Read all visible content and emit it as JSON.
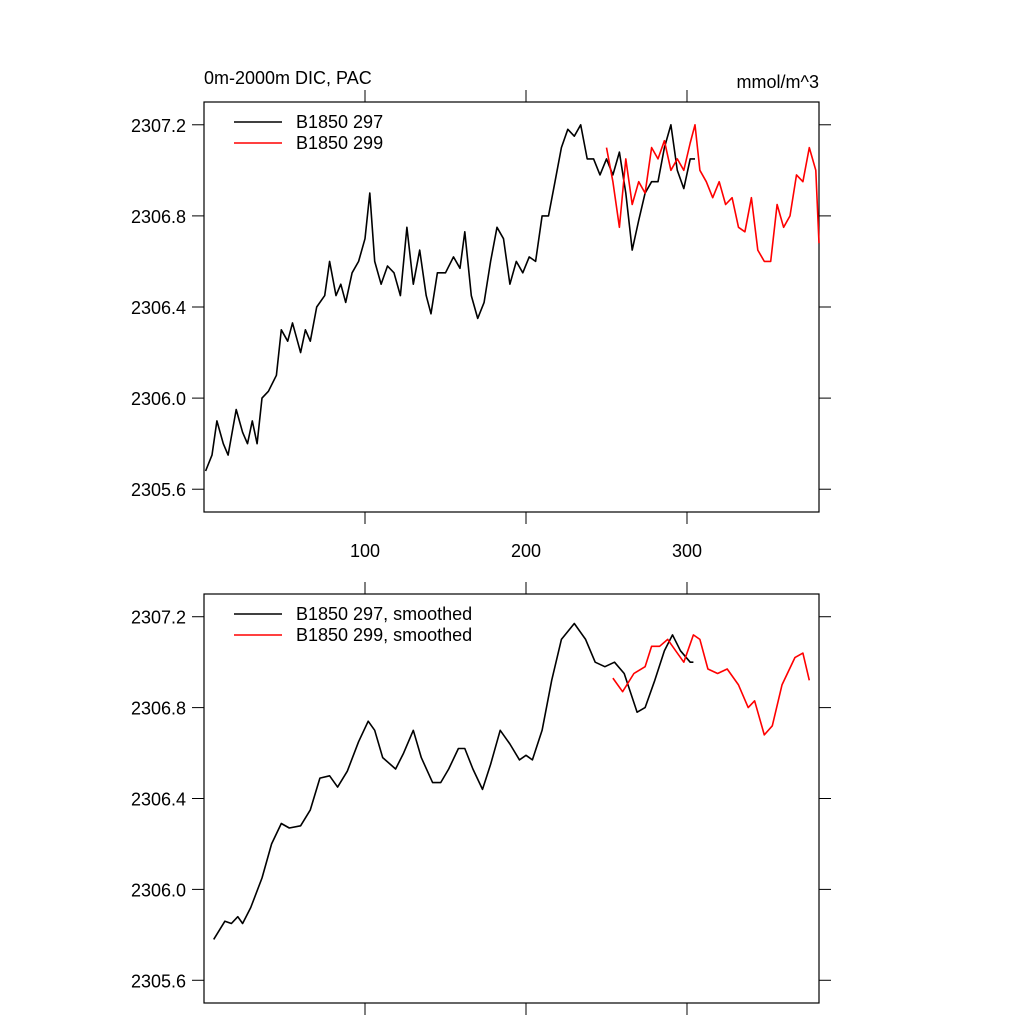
{
  "chart_data": [
    {
      "type": "line",
      "title": "0m-2000m DIC, PAC",
      "units": "mmol/m^3",
      "xlim": [
        0,
        382
      ],
      "ylim": [
        2305.5,
        2307.3
      ],
      "xticks": [
        100,
        200,
        300
      ],
      "show_xtick_labels": true,
      "yticks": [
        2305.6,
        {
          "value": 2306.0,
          "label": "2306.0"
        },
        2306.4,
        2306.8,
        2307.2
      ],
      "legend": "top-left",
      "series": [
        {
          "name": "B1850 297",
          "color": "#000000",
          "x": [
            1,
            5,
            8,
            12,
            15,
            20,
            24,
            27,
            30,
            33,
            36,
            40,
            45,
            48,
            52,
            55,
            60,
            63,
            66,
            70,
            75,
            78,
            82,
            85,
            88,
            92,
            96,
            100,
            103,
            106,
            110,
            114,
            118,
            122,
            126,
            130,
            134,
            138,
            141,
            145,
            150,
            155,
            159,
            162,
            166,
            170,
            174,
            178,
            182,
            186,
            190,
            194,
            198,
            202,
            206,
            210,
            214,
            218,
            222,
            226,
            230,
            234,
            238,
            242,
            246,
            250,
            254,
            258,
            262,
            266,
            270,
            274,
            278,
            282,
            286,
            290,
            294,
            298,
            302,
            305
          ],
          "values": [
            2305.68,
            2305.75,
            2305.9,
            2305.8,
            2305.75,
            2305.95,
            2305.85,
            2305.8,
            2305.9,
            2305.8,
            2306.0,
            2306.03,
            2306.1,
            2306.3,
            2306.25,
            2306.33,
            2306.2,
            2306.3,
            2306.25,
            2306.4,
            2306.45,
            2306.6,
            2306.45,
            2306.5,
            2306.42,
            2306.55,
            2306.6,
            2306.7,
            2306.9,
            2306.6,
            2306.5,
            2306.58,
            2306.55,
            2306.45,
            2306.75,
            2306.5,
            2306.65,
            2306.45,
            2306.37,
            2306.55,
            2306.55,
            2306.62,
            2306.57,
            2306.73,
            2306.45,
            2306.35,
            2306.42,
            2306.6,
            2306.75,
            2306.7,
            2306.5,
            2306.6,
            2306.55,
            2306.62,
            2306.6,
            2306.8,
            2306.8,
            2306.95,
            2307.1,
            2307.18,
            2307.15,
            2307.2,
            2307.05,
            2307.05,
            2306.98,
            2307.05,
            2306.98,
            2307.08,
            2306.9,
            2306.65,
            2306.78,
            2306.9,
            2306.95,
            2306.95,
            2307.1,
            2307.2,
            2307.0,
            2306.92,
            2307.05,
            2307.05
          ]
        },
        {
          "name": "B1850 299",
          "color": "#ff0000",
          "x": [
            250,
            254,
            258,
            262,
            266,
            270,
            274,
            278,
            282,
            286,
            290,
            294,
            298,
            302,
            305,
            308,
            312,
            316,
            320,
            324,
            328,
            332,
            336,
            340,
            344,
            348,
            352,
            356,
            360,
            364,
            368,
            372,
            376,
            380,
            382
          ],
          "values": [
            2307.1,
            2306.95,
            2306.75,
            2307.05,
            2306.85,
            2306.95,
            2306.9,
            2307.1,
            2307.05,
            2307.13,
            2307.0,
            2307.05,
            2307.0,
            2307.12,
            2307.2,
            2307.0,
            2306.95,
            2306.88,
            2306.95,
            2306.85,
            2306.88,
            2306.75,
            2306.73,
            2306.88,
            2306.65,
            2306.6,
            2306.6,
            2306.85,
            2306.75,
            2306.8,
            2306.98,
            2306.95,
            2307.1,
            2307.0,
            2306.68
          ]
        }
      ]
    },
    {
      "type": "line",
      "xlim": [
        0,
        382
      ],
      "ylim": [
        2305.5,
        2307.3
      ],
      "xticks": [
        100,
        200,
        300
      ],
      "show_xtick_labels": false,
      "yticks": [
        2305.6,
        {
          "value": 2306.0,
          "label": "2306.0"
        },
        2306.4,
        2306.8,
        2307.2
      ],
      "legend": "top-left",
      "series": [
        {
          "name": "B1850 297, smoothed",
          "color": "#000000",
          "x": [
            6,
            13,
            17,
            21,
            24,
            29,
            36,
            42,
            48,
            53,
            60,
            66,
            72,
            78,
            83,
            89,
            96,
            102,
            106,
            111,
            119,
            124,
            130,
            135,
            142,
            147,
            152,
            158,
            162,
            167,
            173,
            178,
            184,
            190,
            196,
            200,
            204,
            210,
            216,
            222,
            230,
            237,
            243,
            249,
            255,
            261,
            269,
            274,
            280,
            286,
            291,
            296,
            302,
            304
          ],
          "values": [
            2305.78,
            2305.86,
            2305.85,
            2305.88,
            2305.85,
            2305.92,
            2306.05,
            2306.2,
            2306.29,
            2306.27,
            2306.28,
            2306.35,
            2306.49,
            2306.5,
            2306.45,
            2306.52,
            2306.65,
            2306.74,
            2306.7,
            2306.58,
            2306.53,
            2306.6,
            2306.7,
            2306.58,
            2306.47,
            2306.47,
            2306.53,
            2306.62,
            2306.62,
            2306.53,
            2306.44,
            2306.55,
            2306.7,
            2306.64,
            2306.57,
            2306.59,
            2306.57,
            2306.7,
            2306.92,
            2307.1,
            2307.17,
            2307.1,
            2307.0,
            2306.98,
            2307.0,
            2306.95,
            2306.78,
            2306.8,
            2306.92,
            2307.05,
            2307.12,
            2307.05,
            2307.0,
            2307.0
          ]
        },
        {
          "name": "B1850 299, smoothed",
          "color": "#ff0000",
          "x": [
            254,
            260,
            267,
            274,
            278,
            283,
            288,
            293,
            298,
            304,
            308,
            313,
            319,
            325,
            332,
            338,
            342,
            348,
            353,
            359,
            367,
            372,
            376
          ],
          "values": [
            2306.93,
            2306.87,
            2306.95,
            2306.98,
            2307.07,
            2307.07,
            2307.1,
            2307.05,
            2307.0,
            2307.12,
            2307.1,
            2306.97,
            2306.95,
            2306.97,
            2306.9,
            2306.8,
            2306.83,
            2306.68,
            2306.72,
            2306.9,
            2307.02,
            2307.04,
            2306.92
          ]
        }
      ]
    }
  ]
}
